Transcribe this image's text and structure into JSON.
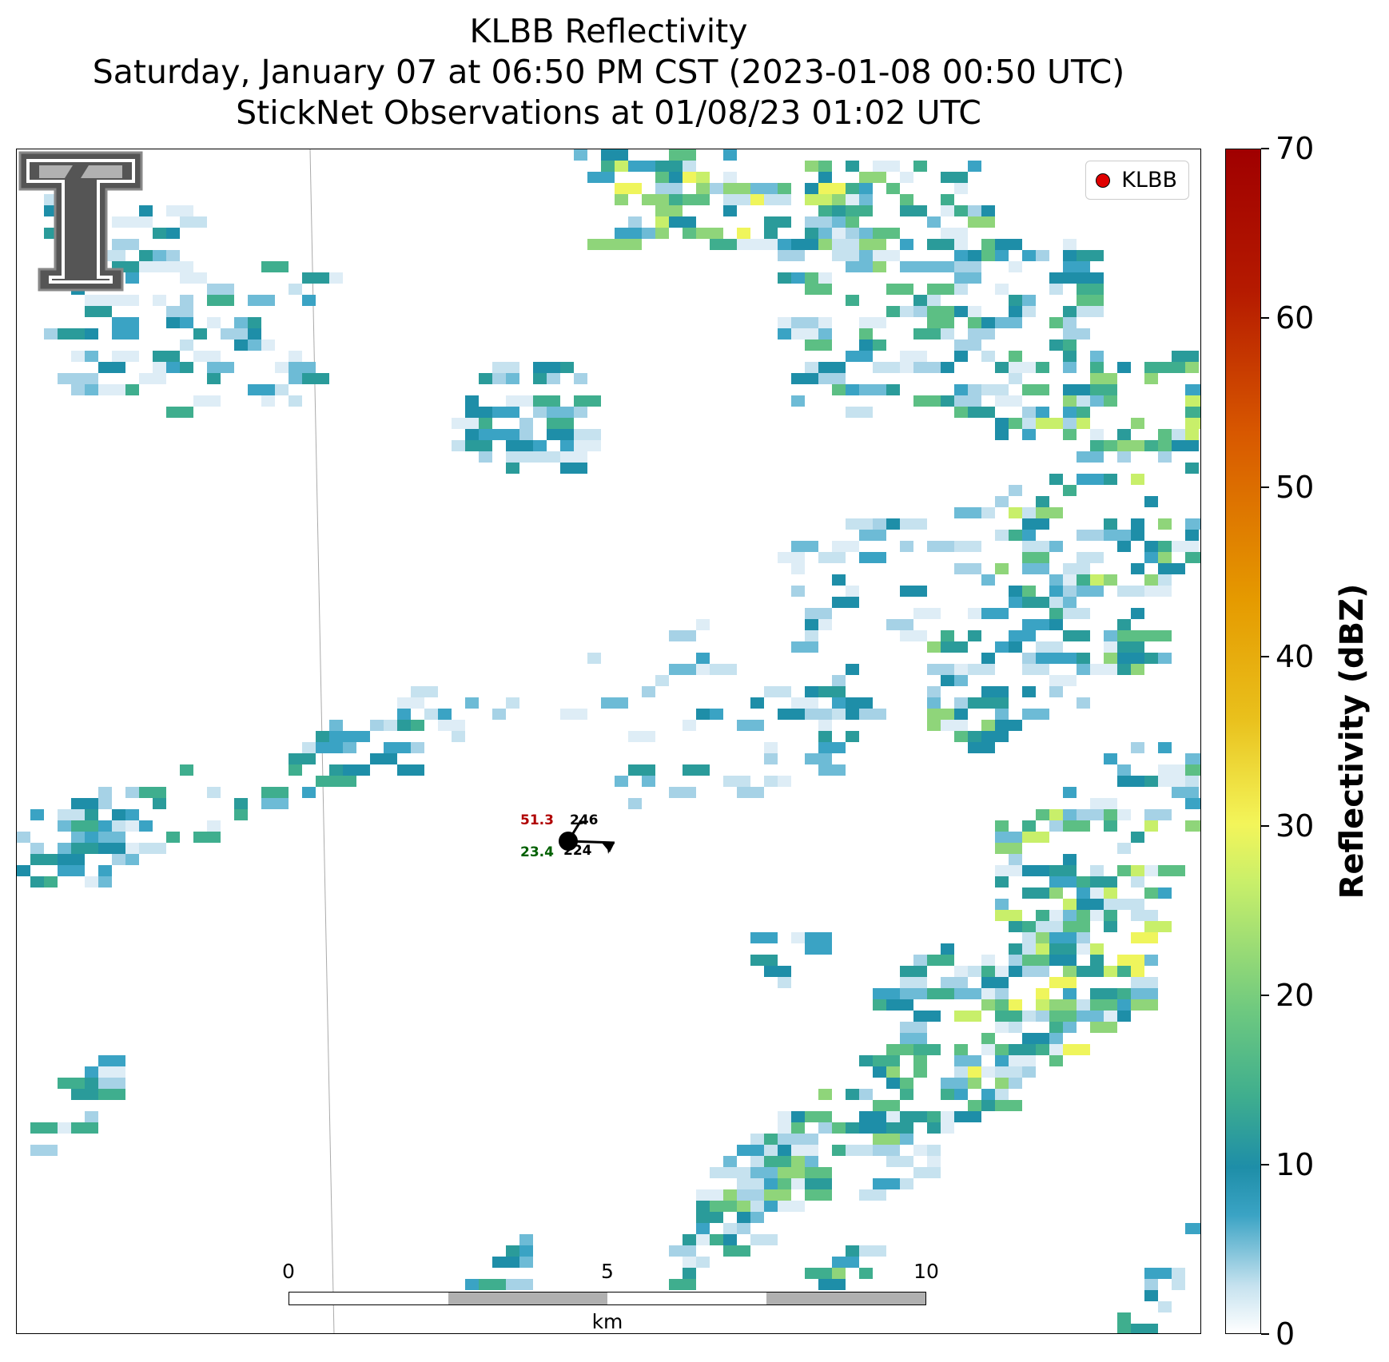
{
  "title": {
    "line1": "KLBB Reflectivity",
    "line2": "Saturday, January 07 at 06:50 PM CST (2023-01-08 00:50 UTC)",
    "line3": "StickNet Observations at 01/08/23 01:02 UTC"
  },
  "legend": {
    "label": "KLBB",
    "marker_color": "#e00000"
  },
  "logo": {
    "icon": "texas-tech-double-t-logo"
  },
  "station": {
    "temperature": "51.3",
    "dewpoint": "23.4",
    "top_right_value": "246",
    "bottom_right_value": "224",
    "temperature_color": "#b00000",
    "dewpoint_color": "#006000"
  },
  "scale_bar": {
    "ticks": [
      "0",
      "5",
      "10"
    ],
    "unit": "km"
  },
  "colorbar": {
    "label": "Reflectivity (dBZ)",
    "ticks": [
      "0",
      "10",
      "20",
      "30",
      "40",
      "50",
      "60",
      "70"
    ],
    "min": 0,
    "max": 70
  }
}
